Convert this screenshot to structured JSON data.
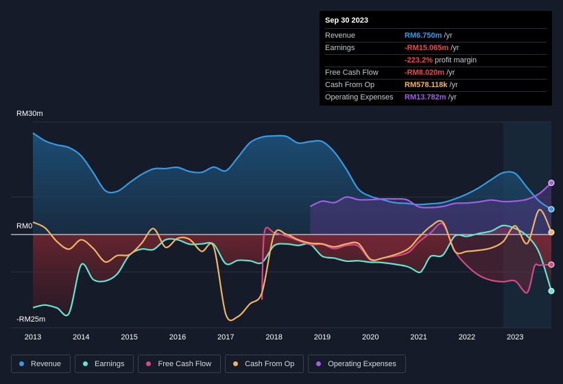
{
  "tooltip": {
    "date": "Sep 30 2023",
    "rows": [
      {
        "label": "Revenue",
        "value": "RM6.750m",
        "unit": "/yr",
        "color": "#3a9ae0"
      },
      {
        "label": "Earnings",
        "value": "-RM15.065m",
        "unit": "/yr",
        "color": "#e8484f"
      },
      {
        "label": "",
        "value": "-223.2%",
        "unit": "profit margin",
        "color": "#e8484f"
      },
      {
        "label": "Free Cash Flow",
        "value": "-RM8.020m",
        "unit": "/yr",
        "color": "#e8484f"
      },
      {
        "label": "Cash From Op",
        "value": "RM578.118k",
        "unit": "/yr",
        "color": "#f1b467"
      },
      {
        "label": "Operating Expenses",
        "value": "RM13.782m",
        "unit": "/yr",
        "color": "#a45ee5"
      }
    ]
  },
  "legend": [
    {
      "label": "Revenue",
      "color": "#3a9ae0"
    },
    {
      "label": "Earnings",
      "color": "#63e5cf"
    },
    {
      "label": "Free Cash Flow",
      "color": "#d44a85"
    },
    {
      "label": "Cash From Op",
      "color": "#f1b467"
    },
    {
      "label": "Operating Expenses",
      "color": "#a45ee5"
    }
  ],
  "chart_data": {
    "type": "line",
    "title": "",
    "y_top_label": "RM30m",
    "y_zero_label": "RM0",
    "y_bottom_label": "-RM25m",
    "ylim": [
      -25,
      30
    ],
    "xlim": [
      2013.0,
      2023.75
    ],
    "x_ticks": [
      "2013",
      "2014",
      "2015",
      "2016",
      "2017",
      "2018",
      "2019",
      "2020",
      "2021",
      "2022",
      "2023"
    ],
    "forecast_start": 2022.75,
    "series": [
      {
        "name": "Revenue",
        "color": "#3a9ae0",
        "points": [
          [
            2013.0,
            27.1
          ],
          [
            2013.25,
            25.0
          ],
          [
            2013.5,
            23.9
          ],
          [
            2013.75,
            23.2
          ],
          [
            2014.0,
            21.0
          ],
          [
            2014.25,
            16.5
          ],
          [
            2014.5,
            11.7
          ],
          [
            2014.75,
            11.5
          ],
          [
            2015.0,
            13.8
          ],
          [
            2015.25,
            16.0
          ],
          [
            2015.5,
            17.5
          ],
          [
            2015.75,
            17.6
          ],
          [
            2016.0,
            17.9
          ],
          [
            2016.25,
            16.8
          ],
          [
            2016.5,
            16.6
          ],
          [
            2016.75,
            18.0
          ],
          [
            2017.0,
            17.0
          ],
          [
            2017.25,
            20.6
          ],
          [
            2017.5,
            24.5
          ],
          [
            2017.75,
            26.0
          ],
          [
            2018.0,
            26.3
          ],
          [
            2018.25,
            26.2
          ],
          [
            2018.5,
            24.4
          ],
          [
            2018.75,
            24.8
          ],
          [
            2019.0,
            24.8
          ],
          [
            2019.25,
            22.0
          ],
          [
            2019.5,
            17.4
          ],
          [
            2019.75,
            12.1
          ],
          [
            2020.0,
            10.2
          ],
          [
            2020.25,
            9.3
          ],
          [
            2020.5,
            8.5
          ],
          [
            2020.75,
            8.3
          ],
          [
            2021.0,
            8.0
          ],
          [
            2021.25,
            8.2
          ],
          [
            2021.5,
            8.5
          ],
          [
            2021.75,
            9.5
          ],
          [
            2022.0,
            10.8
          ],
          [
            2022.25,
            12.5
          ],
          [
            2022.5,
            14.6
          ],
          [
            2022.75,
            16.5
          ],
          [
            2023.0,
            16.3
          ],
          [
            2023.25,
            12.5
          ],
          [
            2023.5,
            8.9
          ],
          [
            2023.75,
            6.75
          ]
        ]
      },
      {
        "name": "Earnings",
        "color": "#63e5cf",
        "points": [
          [
            2013.0,
            -19.5
          ],
          [
            2013.25,
            -18.8
          ],
          [
            2013.5,
            -19.6
          ],
          [
            2013.75,
            -21.0
          ],
          [
            2014.0,
            -8.1
          ],
          [
            2014.25,
            -12.0
          ],
          [
            2014.5,
            -12.4
          ],
          [
            2014.75,
            -10.5
          ],
          [
            2015.0,
            -5.5
          ],
          [
            2015.25,
            -3.9
          ],
          [
            2015.5,
            -4.0
          ],
          [
            2015.75,
            -1.4
          ],
          [
            2016.0,
            -1.4
          ],
          [
            2016.25,
            -2.6
          ],
          [
            2016.5,
            -2.5
          ],
          [
            2016.75,
            -2.6
          ],
          [
            2017.0,
            -7.8
          ],
          [
            2017.25,
            -6.9
          ],
          [
            2017.5,
            -7.0
          ],
          [
            2017.75,
            -7.5
          ],
          [
            2018.0,
            -3.0
          ],
          [
            2018.25,
            -2.5
          ],
          [
            2018.5,
            -2.9
          ],
          [
            2018.75,
            -2.6
          ],
          [
            2019.0,
            -5.8
          ],
          [
            2019.25,
            -6.3
          ],
          [
            2019.5,
            -7.1
          ],
          [
            2019.75,
            -7.0
          ],
          [
            2020.0,
            -7.4
          ],
          [
            2020.25,
            -7.5
          ],
          [
            2020.75,
            -8.5
          ],
          [
            2021.0,
            -10.1
          ],
          [
            2021.1,
            -9.0
          ],
          [
            2021.25,
            -5.8
          ],
          [
            2021.5,
            -5.5
          ],
          [
            2021.75,
            -0.4
          ],
          [
            2022.0,
            -0.5
          ],
          [
            2022.25,
            0.3
          ],
          [
            2022.5,
            0.9
          ],
          [
            2022.75,
            2.4
          ],
          [
            2023.0,
            1.6
          ],
          [
            2023.25,
            -0.4
          ],
          [
            2023.5,
            -4.9
          ],
          [
            2023.75,
            -15.065
          ]
        ]
      },
      {
        "name": "Free Cash Flow",
        "color": "#d44a85",
        "start": 2017.75,
        "points": [
          [
            2017.75,
            -17.4
          ],
          [
            2017.8,
            0.6
          ],
          [
            2018.0,
            0.5
          ],
          [
            2018.25,
            -0.4
          ],
          [
            2018.5,
            -1.6
          ],
          [
            2018.75,
            -2.7
          ],
          [
            2019.0,
            -2.6
          ],
          [
            2019.25,
            -3.8
          ],
          [
            2019.5,
            -2.9
          ],
          [
            2019.75,
            -3.1
          ],
          [
            2020.0,
            -6.8
          ],
          [
            2020.25,
            -6.3
          ],
          [
            2020.75,
            -5.0
          ],
          [
            2021.0,
            -2.0
          ],
          [
            2021.25,
            0.5
          ],
          [
            2021.5,
            2.8
          ],
          [
            2021.75,
            -4.4
          ],
          [
            2022.0,
            -8.3
          ],
          [
            2022.25,
            -10.9
          ],
          [
            2022.5,
            -12.2
          ],
          [
            2022.75,
            -12.6
          ],
          [
            2023.0,
            -12.4
          ],
          [
            2023.25,
            -15.5
          ],
          [
            2023.4,
            -8.5
          ],
          [
            2023.5,
            -8.2
          ],
          [
            2023.75,
            -8.02
          ]
        ]
      },
      {
        "name": "Cash From Op",
        "color": "#f1b467",
        "points": [
          [
            2013.0,
            3.3
          ],
          [
            2013.25,
            1.8
          ],
          [
            2013.5,
            -1.9
          ],
          [
            2013.75,
            -3.9
          ],
          [
            2014.0,
            -1.4
          ],
          [
            2014.25,
            -3.7
          ],
          [
            2014.5,
            -7.3
          ],
          [
            2014.75,
            -5.6
          ],
          [
            2015.0,
            -5.4
          ],
          [
            2015.25,
            -2.4
          ],
          [
            2015.5,
            1.6
          ],
          [
            2015.75,
            -3.4
          ],
          [
            2016.0,
            -1.0
          ],
          [
            2016.25,
            -1.3
          ],
          [
            2016.5,
            -4.5
          ],
          [
            2016.75,
            -3.3
          ],
          [
            2017.0,
            -21.3
          ],
          [
            2017.25,
            -21.9
          ],
          [
            2017.5,
            -18.5
          ],
          [
            2017.75,
            -15.5
          ],
          [
            2018.0,
            0.0
          ],
          [
            2018.25,
            0.1
          ],
          [
            2018.5,
            -1.4
          ],
          [
            2018.75,
            -2.3
          ],
          [
            2019.0,
            -2.5
          ],
          [
            2019.25,
            -3.3
          ],
          [
            2019.5,
            -2.5
          ],
          [
            2019.75,
            -2.4
          ],
          [
            2020.0,
            -6.6
          ],
          [
            2020.25,
            -6.3
          ],
          [
            2020.75,
            -4.1
          ],
          [
            2021.0,
            -0.8
          ],
          [
            2021.25,
            2.2
          ],
          [
            2021.5,
            3.3
          ],
          [
            2021.75,
            -4.5
          ],
          [
            2022.0,
            -4.5
          ],
          [
            2022.25,
            -4.2
          ],
          [
            2022.5,
            -3.6
          ],
          [
            2022.75,
            -1.9
          ],
          [
            2023.0,
            2.3
          ],
          [
            2023.25,
            -2.4
          ],
          [
            2023.5,
            6.6
          ],
          [
            2023.75,
            0.578
          ]
        ]
      },
      {
        "name": "Operating Expenses",
        "color": "#a45ee5",
        "start": 2018.75,
        "points": [
          [
            2018.75,
            7.5
          ],
          [
            2019.0,
            8.9
          ],
          [
            2019.25,
            8.5
          ],
          [
            2019.5,
            10.0
          ],
          [
            2019.75,
            9.3
          ],
          [
            2020.0,
            9.3
          ],
          [
            2020.25,
            9.5
          ],
          [
            2020.5,
            9.5
          ],
          [
            2020.75,
            9.3
          ],
          [
            2021.0,
            7.4
          ],
          [
            2021.25,
            7.2
          ],
          [
            2021.5,
            7.5
          ],
          [
            2021.75,
            8.3
          ],
          [
            2022.0,
            8.4
          ],
          [
            2022.25,
            8.7
          ],
          [
            2022.5,
            9.2
          ],
          [
            2022.75,
            8.8
          ],
          [
            2023.0,
            8.9
          ],
          [
            2023.25,
            9.4
          ],
          [
            2023.5,
            10.9
          ],
          [
            2023.75,
            13.782
          ]
        ]
      }
    ]
  }
}
